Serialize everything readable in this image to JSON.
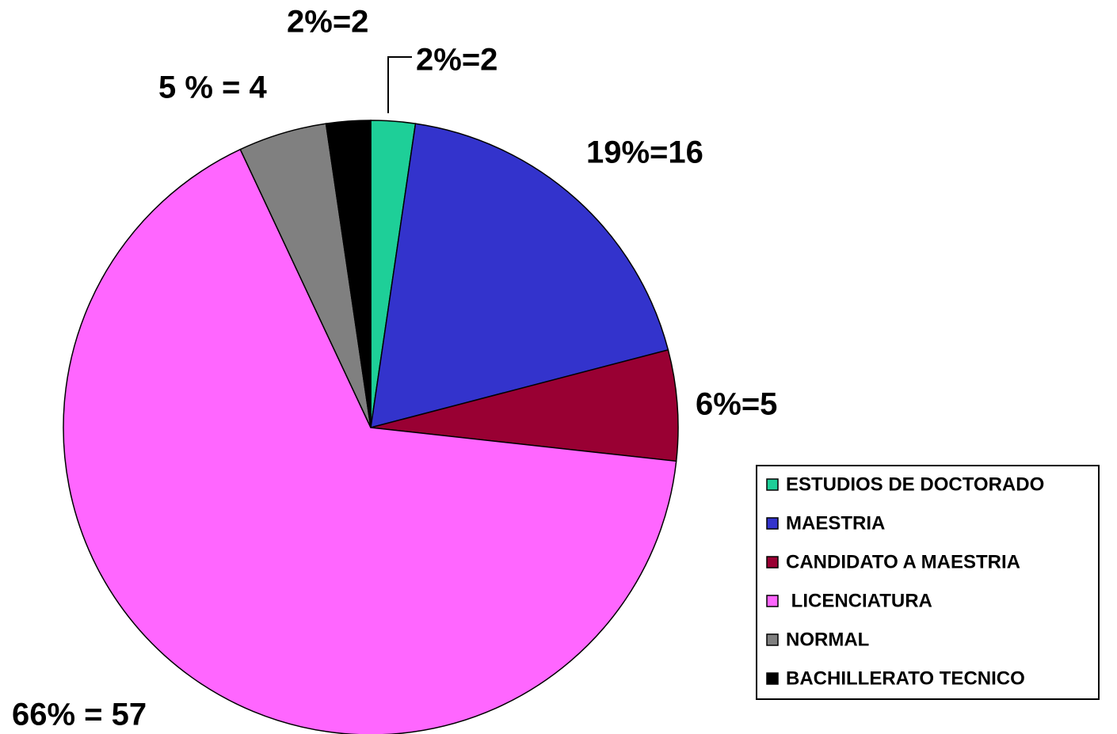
{
  "chart_data": {
    "type": "pie",
    "categories": [
      "ESTUDIOS DE DOCTORADO",
      "MAESTRIA",
      "CANDIDATO A MAESTRIA",
      " LICENCIATURA",
      "NORMAL",
      "BACHILLERATO TECNICO"
    ],
    "values": [
      2,
      16,
      5,
      57,
      4,
      2
    ],
    "value_labels": [
      "2%=2",
      "19%=16",
      "6%=5",
      "66% = 57",
      "5 % = 4",
      "2%=2"
    ],
    "colors": [
      "#1ecf98",
      "#3333cc",
      "#990033",
      "#ff66ff",
      "#808080",
      "#000000"
    ],
    "legend": "right"
  }
}
